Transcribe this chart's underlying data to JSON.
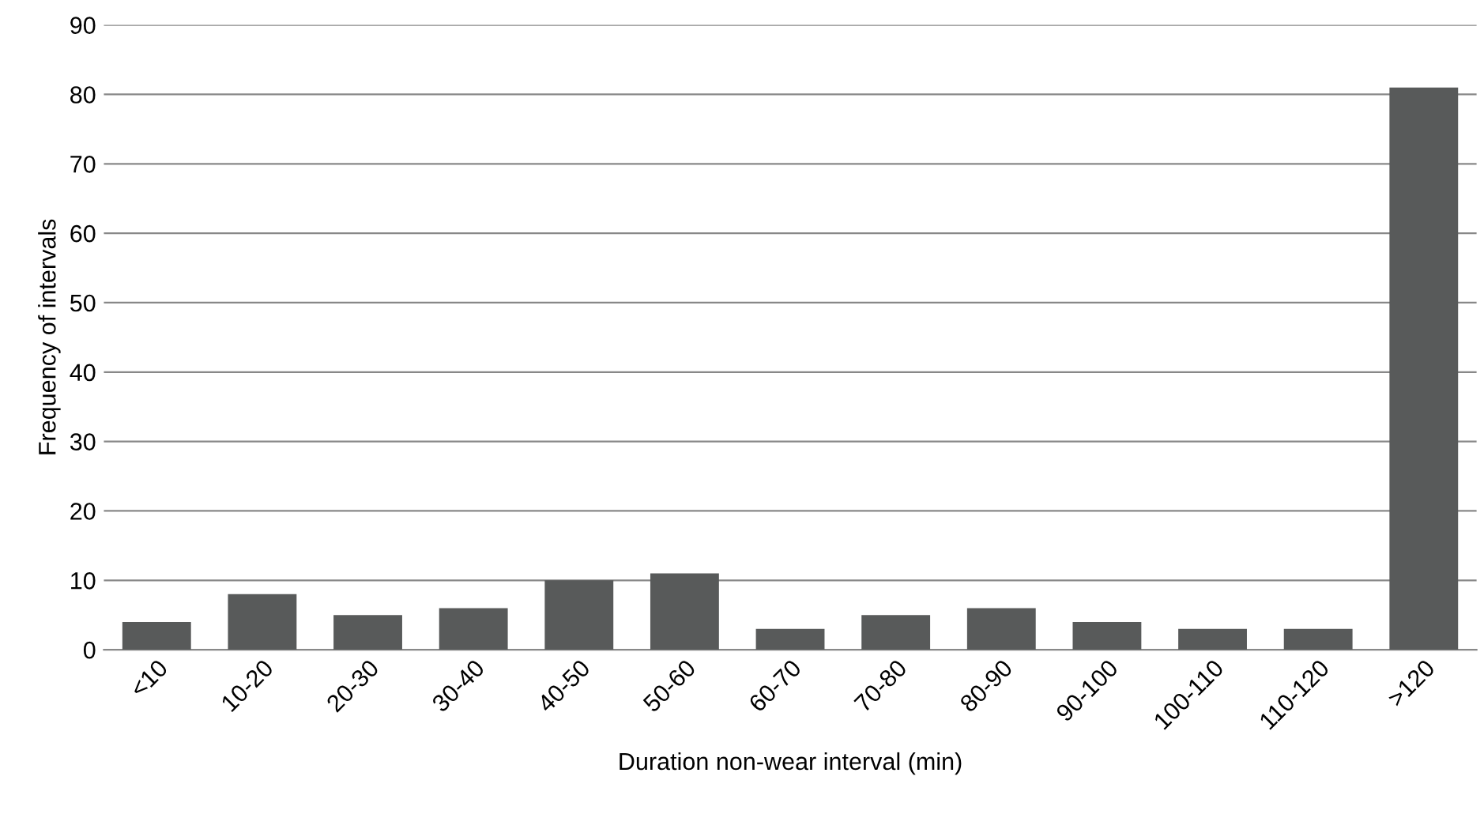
{
  "chart_data": {
    "type": "bar",
    "xlabel": "Duration non-wear interval (min)",
    "ylabel": "Frequency of intervals",
    "categories": [
      "<10",
      "10-20",
      "20-30",
      "30-40",
      "40-50",
      "50-60",
      "60-70",
      "70-80",
      "80-90",
      "90-100",
      "100-110",
      "110-120",
      ">120"
    ],
    "values": [
      4,
      8,
      5,
      6,
      10,
      11,
      3,
      5,
      6,
      4,
      3,
      3,
      81
    ],
    "color": "#585a5a",
    "ylim": [
      0,
      90
    ],
    "yticks": [
      0,
      10,
      20,
      30,
      40,
      50,
      60,
      70,
      80,
      90
    ],
    "grid": "y",
    "legend": false
  }
}
